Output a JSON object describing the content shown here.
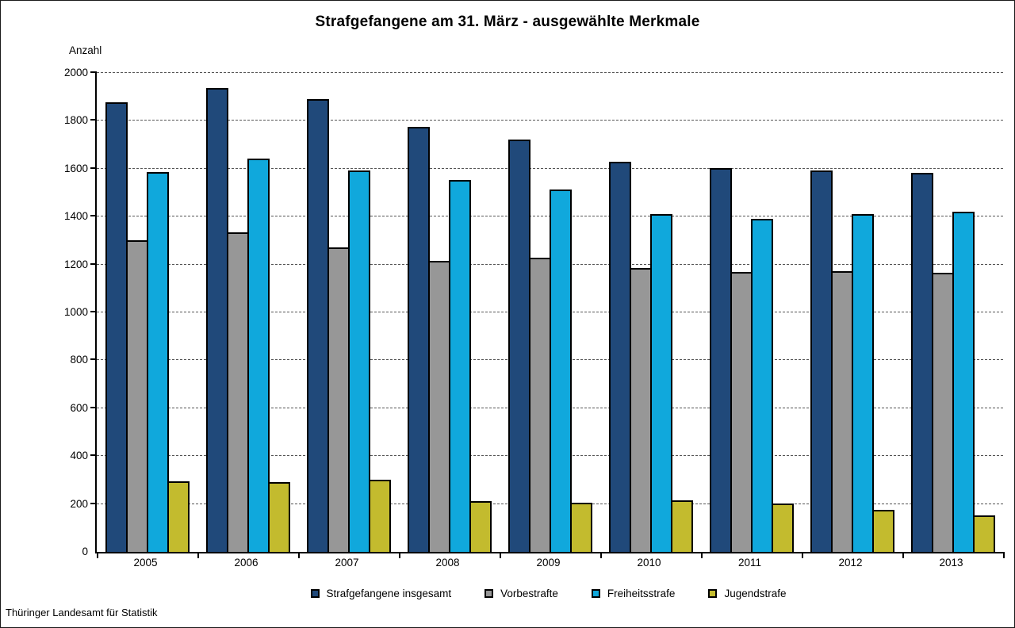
{
  "page": {
    "source": "Thüringer Landesamt für Statistik"
  },
  "chart_data": {
    "type": "bar",
    "title": "Strafgefangene am 31. März - ausgewählte Merkmale",
    "ylabel": "Anzahl",
    "xlabel": "",
    "ylim": [
      0,
      2000
    ],
    "ytick_step": 200,
    "grid": "horizontal-dashed",
    "legend_position": "bottom-center",
    "categories": [
      "2005",
      "2006",
      "2007",
      "2008",
      "2009",
      "2010",
      "2011",
      "2012",
      "2013"
    ],
    "series": [
      {
        "name": "Strafgefangene insgesamt",
        "color": "#20497A",
        "values": [
          1878,
          1937,
          1891,
          1774,
          1721,
          1630,
          1604,
          1592,
          1584
        ]
      },
      {
        "name": "Vorbestrafte",
        "color": "#979797",
        "values": [
          1301,
          1334,
          1270,
          1215,
          1229,
          1184,
          1169,
          1171,
          1165
        ]
      },
      {
        "name": "Freiheitsstrafe",
        "color": "#10A8DC",
        "values": [
          1585,
          1644,
          1594,
          1554,
          1513,
          1411,
          1391,
          1409,
          1419
        ]
      },
      {
        "name": "Jugendstrafe",
        "color": "#C3BB2E",
        "values": [
          296,
          291,
          301,
          211,
          206,
          216,
          203,
          176,
          152
        ]
      }
    ]
  }
}
